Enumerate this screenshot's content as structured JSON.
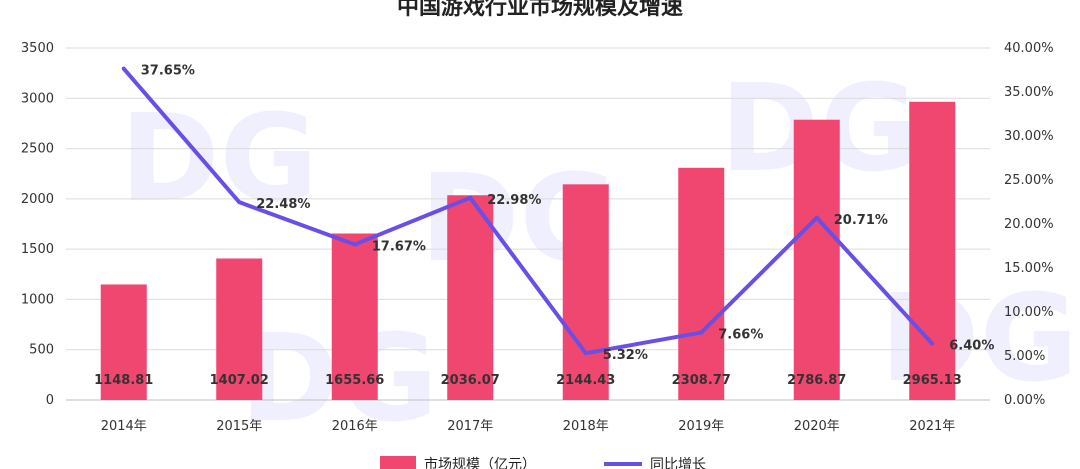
{
  "chart_data": {
    "type": "bar",
    "title": "中国游戏行业市场规模及增速",
    "categories": [
      "2014年",
      "2015年",
      "2016年",
      "2017年",
      "2018年",
      "2019年",
      "2020年",
      "2021年"
    ],
    "series": [
      {
        "name": "市场规模（亿元）",
        "type": "bar",
        "axis": "left",
        "color": "#ef476f",
        "values": [
          1148.81,
          1407.02,
          1655.66,
          2036.07,
          2144.43,
          2308.77,
          2786.87,
          2965.13
        ],
        "labels": [
          "1148.81",
          "1407.02",
          "1655.66",
          "2036.07",
          "2144.43",
          "2308.77",
          "2786.87",
          "2965.13"
        ]
      },
      {
        "name": "同比增长",
        "type": "line",
        "axis": "right",
        "color": "#6a4fe6",
        "values": [
          37.65,
          22.48,
          17.67,
          22.98,
          5.32,
          7.66,
          20.71,
          6.4
        ],
        "labels": [
          "37.65%",
          "22.48%",
          "17.67%",
          "22.98%",
          "5.32%",
          "7.66%",
          "20.71%",
          "6.40%"
        ]
      }
    ],
    "y_left": {
      "min": 0,
      "max": 3500,
      "ticks": [
        "0",
        "500",
        "1000",
        "1500",
        "2000",
        "2500",
        "3000",
        "3500"
      ]
    },
    "y_right": {
      "min": 0,
      "max": 40,
      "ticks": [
        "0.00%",
        "5.00%",
        "10.00%",
        "15.00%",
        "20.00%",
        "25.00%",
        "30.00%",
        "35.00%",
        "40.00%"
      ]
    },
    "grid": true,
    "legend": "bottom"
  }
}
